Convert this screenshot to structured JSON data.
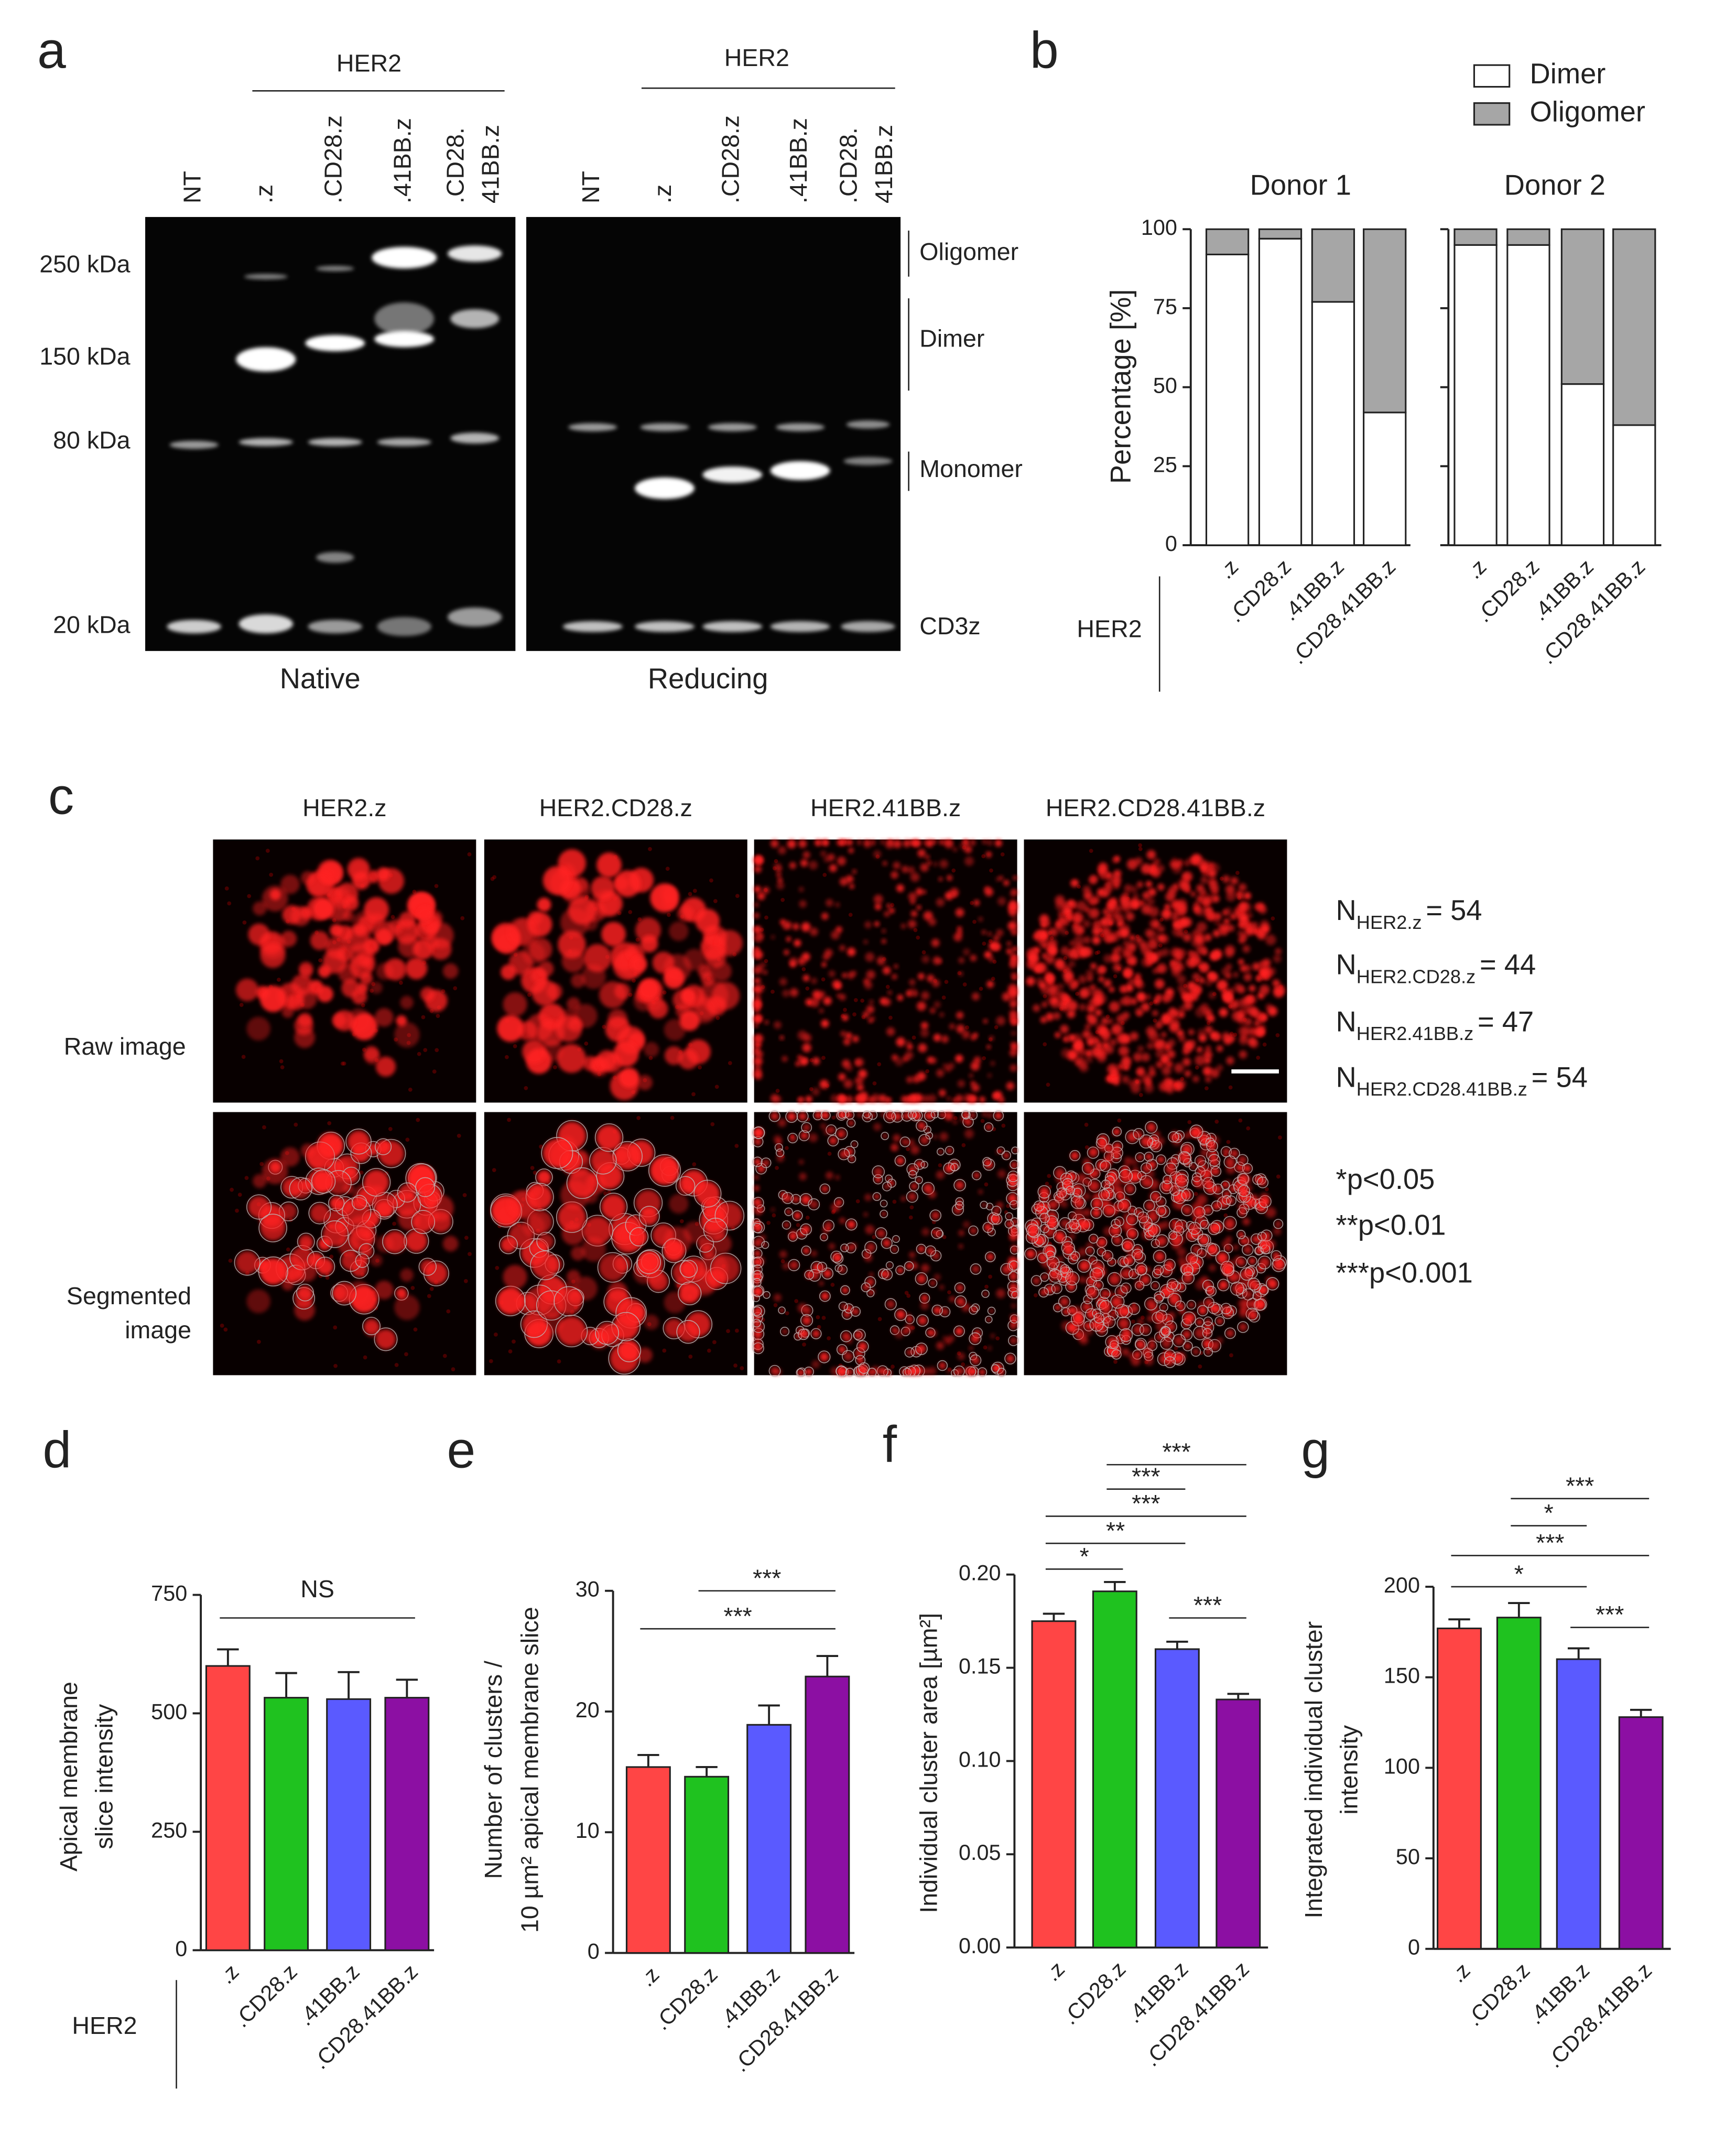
{
  "gel": {
    "letter": "a",
    "native": {
      "group": "HER2",
      "lanes": [
        [
          "NT"
        ],
        [
          ".z"
        ],
        [
          ".CD28.z"
        ],
        [
          ".41BB.z"
        ],
        [
          ".CD28.",
          "41BB.z"
        ]
      ],
      "caption": "Native"
    },
    "reducing": {
      "group": "HER2",
      "lanes": [
        [
          "NT"
        ],
        [
          ".z"
        ],
        [
          ".CD28.z"
        ],
        [
          ".41BB.z"
        ],
        [
          ".CD28.",
          "41BB.z"
        ]
      ],
      "caption": "Reducing"
    },
    "markers": [
      "250 kDa",
      "150 kDa",
      "80 kDa",
      "20 kDa"
    ],
    "bands": [
      "Oligomer",
      "Dimer",
      "Monomer",
      "CD3z"
    ]
  },
  "imaging": {
    "letter": "c",
    "columns": [
      "HER2.z",
      "HER2.CD28.z",
      "HER2.41BB.z",
      "HER2.CD28.41BB.z"
    ],
    "rows": [
      [
        "Raw image"
      ],
      [
        "Segmented",
        "image"
      ]
    ],
    "n": [
      {
        "symbol": "N",
        "sub": "HER2.z",
        "text": "= 54"
      },
      {
        "symbol": "N",
        "sub": "HER2.CD28.z",
        "text": "= 44"
      },
      {
        "symbol": "N",
        "sub": "HER2.41BB.z",
        "text": "= 47"
      },
      {
        "symbol": "N",
        "sub": "HER2.CD28.41BB.z",
        "text": "= 54"
      }
    ],
    "p": [
      "*p<0.05",
      "**p<0.01",
      "***p<0.001"
    ]
  },
  "chart_data": [
    {
      "type": "stacked_bar",
      "letter": "b",
      "facets": [
        "Donor 1",
        "Donor 2"
      ],
      "group_label": "HER2",
      "categories": [
        ".z",
        ".CD28.z",
        ".41BB.z",
        ".CD28.41BB.z",
        ".z",
        ".CD28.z",
        ".41BB.z",
        ".CD28.41BB.z"
      ],
      "series": [
        {
          "name": "Dimer",
          "color": "#ffffff",
          "values": [
            92,
            97,
            77,
            42,
            95,
            95,
            51,
            38
          ]
        },
        {
          "name": "Oligomer",
          "color": "#a6a6a6",
          "values": [
            8,
            3,
            23,
            58,
            5,
            5,
            49,
            62
          ]
        }
      ],
      "ylabel": [
        "Percentage [%]"
      ],
      "ylim": [
        0,
        100
      ],
      "yticks": [
        0,
        25,
        50,
        75,
        100
      ]
    },
    {
      "type": "bar",
      "letter": "d",
      "group_label": "HER2",
      "categories": [
        ".z",
        ".CD28.z",
        ".41BB.z",
        ".CD28.41BB.z"
      ],
      "values": [
        600,
        533,
        530,
        533
      ],
      "errors": [
        35,
        52,
        57,
        38
      ],
      "colors": [
        "#ff4545",
        "#1fc21f",
        "#5a5aff",
        "#8c0fa3"
      ],
      "ylabel": [
        "Apical membrane",
        "slice intensity"
      ],
      "ylim": [
        0,
        750
      ],
      "yticks": [
        0,
        250,
        500,
        750
      ],
      "comparisons": [
        {
          "from": 0,
          "to": 3,
          "label": "NS"
        }
      ]
    },
    {
      "type": "bar",
      "letter": "e",
      "categories": [
        ".z",
        ".CD28.z",
        ".41BB.z",
        ".CD28.41BB.z"
      ],
      "values": [
        15.4,
        14.6,
        18.9,
        22.9
      ],
      "errors": [
        1.0,
        0.8,
        1.6,
        1.7
      ],
      "colors": [
        "#ff4545",
        "#1fc21f",
        "#5a5aff",
        "#8c0fa3"
      ],
      "ylabel": [
        "Number of clusters /",
        "10 µm² apical membrane slice"
      ],
      "ylim": [
        0,
        30
      ],
      "yticks": [
        0,
        10,
        20,
        30
      ],
      "comparisons": [
        {
          "from": 1,
          "to": 3,
          "label": "***"
        },
        {
          "from": 0,
          "to": 3,
          "label": "***"
        }
      ]
    },
    {
      "type": "bar",
      "letter": "f",
      "categories": [
        ".z",
        ".CD28.z",
        ".41BB.z",
        ".CD28.41BB.z"
      ],
      "values": [
        0.175,
        0.191,
        0.16,
        0.133
      ],
      "errors": [
        0.004,
        0.005,
        0.004,
        0.003
      ],
      "colors": [
        "#ff4545",
        "#1fc21f",
        "#5a5aff",
        "#8c0fa3"
      ],
      "ylabel": [
        "Individual cluster area  [µm²]"
      ],
      "ylim": [
        0,
        0.2
      ],
      "yticks": [
        {
          "value": 0,
          "label": "0.00"
        },
        {
          "value": 0.05,
          "label": "0.05"
        },
        {
          "value": 0.1,
          "label": "0.10"
        },
        {
          "value": 0.15,
          "label": "0.15"
        },
        {
          "value": 0.2,
          "label": "0.20"
        }
      ],
      "comparisons": [
        {
          "from": 1,
          "to": 3,
          "label": "***"
        },
        {
          "from": 1,
          "to": 2,
          "label": "***"
        },
        {
          "from": 0,
          "to": 3,
          "label": "***"
        },
        {
          "from": 0,
          "to": 2,
          "label": "**"
        },
        {
          "from": 0,
          "to": 1,
          "label": "*"
        },
        {
          "from": 2,
          "to": 3,
          "label": "***"
        }
      ]
    },
    {
      "type": "bar",
      "letter": "g",
      "categories": [
        ".z",
        ".CD28.z",
        ".41BB.z",
        ".CD28.41BB.z"
      ],
      "values": [
        177,
        183,
        160,
        128
      ],
      "errors": [
        5,
        8,
        6,
        4
      ],
      "colors": [
        "#ff4545",
        "#1fc21f",
        "#5a5aff",
        "#8c0fa3"
      ],
      "ylabel": [
        "Integrated individual cluster",
        "intensity"
      ],
      "ylim": [
        0,
        200
      ],
      "yticks": [
        0,
        50,
        100,
        150,
        200
      ],
      "comparisons": [
        {
          "from": 1,
          "to": 3,
          "label": "***"
        },
        {
          "from": 1,
          "to": 2,
          "label": "*"
        },
        {
          "from": 0,
          "to": 3,
          "label": "***"
        },
        {
          "from": 0,
          "to": 2,
          "label": "*"
        },
        {
          "from": 2,
          "to": 3,
          "label": "***"
        }
      ]
    }
  ]
}
